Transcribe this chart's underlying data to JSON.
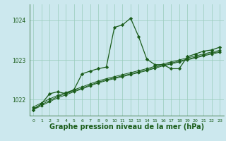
{
  "background_color": "#cce8ee",
  "grid_color": "#99ccbb",
  "line_color": "#1a5c1a",
  "marker_color": "#1a5c1a",
  "xlabel": "Graphe pression niveau de la mer (hPa)",
  "xlabel_fontsize": 7.0,
  "xlim": [
    -0.5,
    23.5
  ],
  "ylim": [
    1021.6,
    1024.4
  ],
  "yticks": [
    1022,
    1023,
    1024
  ],
  "xticks": [
    0,
    1,
    2,
    3,
    4,
    5,
    6,
    7,
    8,
    9,
    10,
    11,
    12,
    13,
    14,
    15,
    16,
    17,
    18,
    19,
    20,
    21,
    22,
    23
  ],
  "main_y": [
    1021.75,
    1021.9,
    1022.15,
    1022.2,
    1022.15,
    1022.25,
    1022.65,
    1022.72,
    1022.78,
    1022.82,
    1023.82,
    1023.88,
    1024.05,
    1023.58,
    1023.02,
    1022.88,
    1022.88,
    1022.78,
    1022.78,
    1023.08,
    1023.15,
    1023.22,
    1023.25,
    1023.32
  ],
  "smooth1": [
    1021.75,
    1021.85,
    1021.95,
    1022.05,
    1022.12,
    1022.2,
    1022.27,
    1022.35,
    1022.42,
    1022.48,
    1022.53,
    1022.58,
    1022.63,
    1022.68,
    1022.73,
    1022.79,
    1022.85,
    1022.9,
    1022.95,
    1023.0,
    1023.05,
    1023.1,
    1023.15,
    1023.19
  ],
  "smooth2": [
    1021.78,
    1021.88,
    1021.98,
    1022.08,
    1022.15,
    1022.22,
    1022.29,
    1022.37,
    1022.44,
    1022.5,
    1022.55,
    1022.6,
    1022.65,
    1022.7,
    1022.75,
    1022.81,
    1022.87,
    1022.92,
    1022.97,
    1023.02,
    1023.07,
    1023.12,
    1023.17,
    1023.21
  ],
  "smooth3": [
    1021.82,
    1021.92,
    1022.02,
    1022.11,
    1022.18,
    1022.25,
    1022.32,
    1022.4,
    1022.47,
    1022.53,
    1022.58,
    1022.63,
    1022.68,
    1022.73,
    1022.78,
    1022.84,
    1022.9,
    1022.95,
    1023.0,
    1023.05,
    1023.1,
    1023.15,
    1023.2,
    1023.24
  ]
}
